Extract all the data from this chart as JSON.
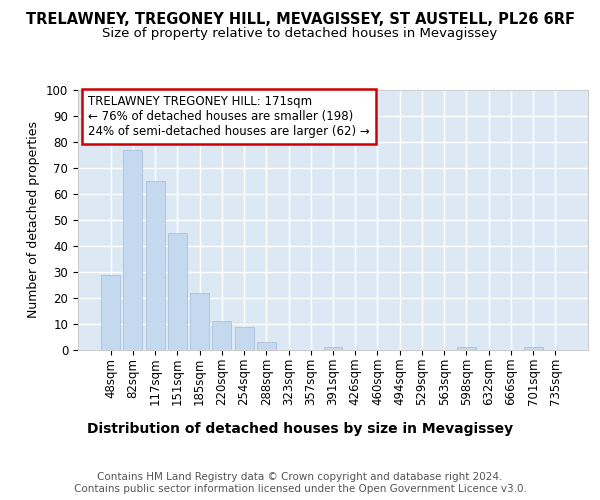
{
  "title": "TRELAWNEY, TREGONEY HILL, MEVAGISSEY, ST AUSTELL, PL26 6RF",
  "subtitle": "Size of property relative to detached houses in Mevagissey",
  "xlabel": "Distribution of detached houses by size in Mevagissey",
  "ylabel": "Number of detached properties",
  "categories": [
    "48sqm",
    "82sqm",
    "117sqm",
    "151sqm",
    "185sqm",
    "220sqm",
    "254sqm",
    "288sqm",
    "323sqm",
    "357sqm",
    "391sqm",
    "426sqm",
    "460sqm",
    "494sqm",
    "529sqm",
    "563sqm",
    "598sqm",
    "632sqm",
    "666sqm",
    "701sqm",
    "735sqm"
  ],
  "values": [
    29,
    77,
    65,
    45,
    22,
    11,
    9,
    3,
    0,
    0,
    1,
    0,
    0,
    0,
    0,
    0,
    1,
    0,
    0,
    1,
    0
  ],
  "bar_color": "#c5d9ee",
  "bar_edge_color": "#a0bcd8",
  "vline_x_index": 3,
  "vline_color": "#444444",
  "annotation_text": "TRELAWNEY TREGONEY HILL: 171sqm\n← 76% of detached houses are smaller (198)\n24% of semi-detached houses are larger (62) →",
  "annotation_box_color": "#ffffff",
  "annotation_box_edge_color": "#cc0000",
  "ylim": [
    0,
    100
  ],
  "yticks": [
    0,
    10,
    20,
    30,
    40,
    50,
    60,
    70,
    80,
    90,
    100
  ],
  "fig_bg_color": "#ffffff",
  "plot_bg_color": "#dce9f5",
  "grid_color": "#ffffff",
  "footer": "Contains HM Land Registry data © Crown copyright and database right 2024.\nContains public sector information licensed under the Open Government Licence v3.0.",
  "title_fontsize": 10.5,
  "subtitle_fontsize": 9.5,
  "xlabel_fontsize": 10,
  "ylabel_fontsize": 9,
  "annotation_fontsize": 8.5,
  "footer_fontsize": 7.5,
  "tick_fontsize": 8.5
}
